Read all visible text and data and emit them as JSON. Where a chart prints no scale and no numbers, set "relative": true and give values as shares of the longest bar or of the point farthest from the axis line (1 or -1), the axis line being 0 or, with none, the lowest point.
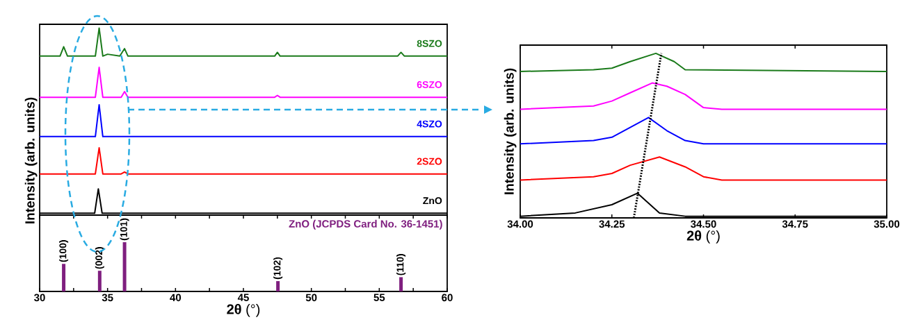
{
  "chart_data": [
    {
      "type": "line",
      "relative": true,
      "xlim": [
        30,
        60
      ],
      "tick_labels": false,
      "ylabel": "Intensity (arb. units)",
      "series": [
        {
          "name": "ZnO",
          "color": "#000000",
          "x": [
            30,
            34.05,
            34.32,
            34.6,
            60
          ],
          "values": [
            0.01,
            0.01,
            0.14,
            0.01,
            0.01
          ]
        },
        {
          "name": "2SZO",
          "color": "#ff0000",
          "x": [
            30,
            34.1,
            34.38,
            34.65,
            36.0,
            36.25,
            36.5,
            60
          ],
          "values": [
            0.22,
            0.22,
            0.36,
            0.22,
            0.22,
            0.23,
            0.22,
            0.22
          ]
        },
        {
          "name": "4SZO",
          "color": "#0000ff",
          "x": [
            30,
            34.1,
            34.38,
            34.65,
            60
          ],
          "values": [
            0.42,
            0.42,
            0.59,
            0.42,
            0.42
          ]
        },
        {
          "name": "6SZO",
          "color": "#ff00ff",
          "x": [
            30,
            34.1,
            34.38,
            34.65,
            36.0,
            36.25,
            36.5,
            47.3,
            47.5,
            47.7,
            60
          ],
          "values": [
            0.63,
            0.63,
            0.79,
            0.63,
            0.63,
            0.66,
            0.63,
            0.63,
            0.64,
            0.63,
            0.63
          ]
        },
        {
          "name": "8SZO",
          "color": "#1a7a1a",
          "x": [
            30,
            31.5,
            31.77,
            32.05,
            34.1,
            34.38,
            34.65,
            35.0,
            35.9,
            36.25,
            36.5,
            47.3,
            47.5,
            47.7,
            56.35,
            56.6,
            56.85,
            60
          ],
          "values": [
            0.85,
            0.85,
            0.9,
            0.85,
            0.85,
            1,
            0.85,
            0.86,
            0.85,
            0.89,
            0.85,
            0.85,
            0.87,
            0.85,
            0.85,
            0.87,
            0.85,
            0.85
          ]
        }
      ]
    },
    {
      "type": "bar",
      "relative": true,
      "xlim": [
        30,
        60
      ],
      "tick_labels": "x",
      "xlabel": "**2θ** (°)",
      "xticks": [
        30,
        {
          "value": 32.5,
          "label": null
        },
        35,
        {
          "value": 37.5,
          "label": null
        },
        40,
        {
          "value": 42.5,
          "label": null
        },
        45,
        {
          "value": 47.5,
          "label": null
        },
        50,
        {
          "value": 52.5,
          "label": null
        },
        55,
        {
          "value": 57.5,
          "label": null
        },
        60
      ],
      "x": [
        31.77,
        34.42,
        36.25,
        47.54,
        56.6
      ],
      "values": [
        0.56,
        0.42,
        1,
        0.21,
        0.29
      ],
      "color": "#7f1f7f",
      "annotations": [
        "ZnO (JCPDS Card No. 36-1451)",
        {
          "text": "(100)",
          "x": 31.77,
          "y": 0.56
        },
        {
          "text": "(002)",
          "x": 34.42,
          "y": 0.42
        },
        {
          "text": "(101)",
          "x": 36.25,
          "y": 1
        },
        {
          "text": "(102)",
          "x": 47.54,
          "y": 0.21
        },
        {
          "text": "(110)",
          "x": 56.6,
          "y": 0.29
        }
      ]
    },
    {
      "type": "line",
      "relative": true,
      "xlim": [
        34,
        35
      ],
      "tick_labels": "x",
      "xlabel": "**2θ** (°)",
      "ylabel": "Intensity (arb. units)",
      "xticks": [
        {
          "value": 34,
          "label": "34.00"
        },
        {
          "value": 34.25,
          "label": "34.25"
        },
        {
          "value": 34.5,
          "label": "34.50"
        },
        {
          "value": 34.75,
          "label": "34.75"
        },
        {
          "value": 35,
          "label": "35.00"
        }
      ],
      "series": [
        {
          "color": "#000000",
          "x": [
            34,
            34.15,
            34.25,
            34.32,
            34.38,
            34.45,
            35
          ],
          "values": [
            0.01,
            0.03,
            0.08,
            0.15,
            0.03,
            0.01,
            0.01
          ]
        },
        {
          "color": "#ff0000",
          "x": [
            34,
            34.2,
            34.25,
            34.3,
            34.38,
            34.45,
            34.5,
            34.55,
            35
          ],
          "values": [
            0.23,
            0.25,
            0.27,
            0.32,
            0.37,
            0.31,
            0.25,
            0.23,
            0.23
          ]
        },
        {
          "color": "#0000ff",
          "x": [
            34,
            34.2,
            34.25,
            34.3,
            34.35,
            34.4,
            34.45,
            34.5,
            35
          ],
          "values": [
            0.45,
            0.47,
            0.49,
            0.55,
            0.61,
            0.53,
            0.47,
            0.45,
            0.45
          ]
        },
        {
          "color": "#ff00ff",
          "x": [
            34,
            34.2,
            34.25,
            34.3,
            34.36,
            34.4,
            34.45,
            34.5,
            34.55,
            35
          ],
          "values": [
            0.66,
            0.68,
            0.71,
            0.76,
            0.82,
            0.8,
            0.75,
            0.67,
            0.66,
            0.66
          ]
        },
        {
          "color": "#1a7a1a",
          "x": [
            34,
            34.2,
            34.25,
            34.3,
            34.37,
            34.42,
            34.45,
            35
          ],
          "values": [
            0.89,
            0.9,
            0.91,
            0.95,
            1,
            0.95,
            0.9,
            0.89
          ]
        },
        {
          "color": "#000000",
          "line_style": "dotted",
          "x": [
            34.31,
            34.385
          ],
          "values": [
            0,
            1
          ]
        }
      ]
    }
  ]
}
